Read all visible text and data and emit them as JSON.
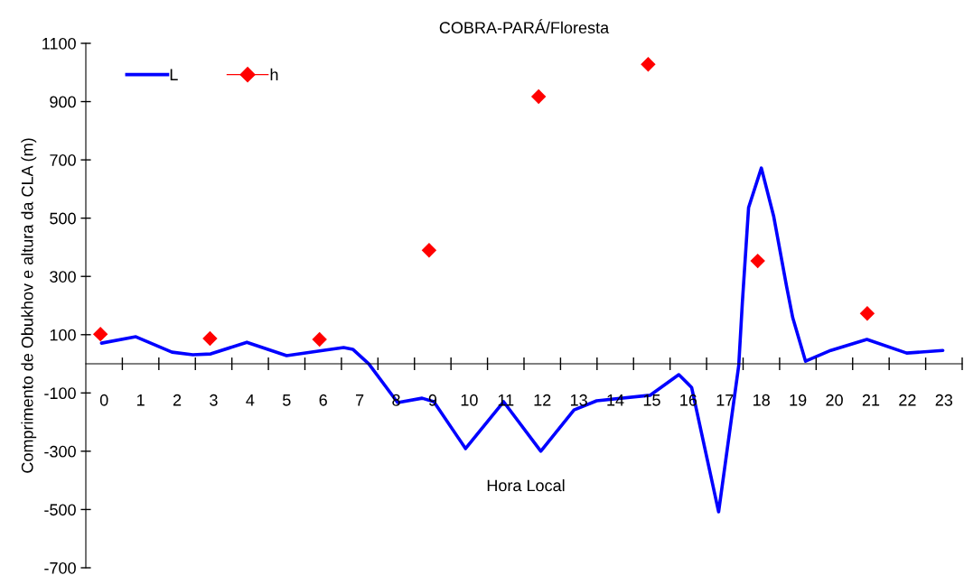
{
  "chart_data": {
    "type": "line",
    "title": "COBRA-PARÁ/Floresta",
    "xlabel": "Hora Local",
    "ylabel": "Comprimento de Obukhov e altura da CLA (m)",
    "xlim": [
      -0.5,
      23.5
    ],
    "xticks": [
      0,
      1,
      2,
      3,
      4,
      5,
      6,
      7,
      8,
      9,
      10,
      11,
      12,
      13,
      14,
      15,
      16,
      17,
      18,
      19,
      20,
      21,
      22,
      23
    ],
    "ylim": [
      -700,
      1100
    ],
    "yticks": [
      -700,
      -500,
      -300,
      -100,
      100,
      300,
      500,
      700,
      900,
      1100
    ],
    "grid": false,
    "legend": "top left",
    "series": [
      {
        "name": "L",
        "color": "#0000ff",
        "marker": "none",
        "line_style": "solid",
        "x": [
          -0.07,
          0.87,
          1.86,
          2.43,
          2.92,
          3.91,
          5.0,
          5.99,
          6.56,
          6.81,
          7.25,
          8.04,
          8.71,
          9.03,
          9.9,
          10.94,
          11.96,
          12.87,
          13.49,
          14.95,
          15.74,
          16.09,
          16.83,
          17.38,
          17.48,
          17.65,
          18.0,
          18.34,
          18.69,
          18.86,
          19.21,
          19.9,
          20.89,
          21.98,
          22.97
        ],
        "values": [
          71,
          93,
          40,
          31,
          34,
          74,
          28,
          46,
          56,
          50,
          0,
          -133,
          -118,
          -130,
          -291,
          -130,
          -300,
          -158,
          -127,
          -108,
          -37,
          -81,
          -508,
          -6,
          211,
          536,
          672,
          505,
          266,
          158,
          9,
          46,
          84,
          37,
          46
        ]
      },
      {
        "name": "h",
        "type": "scatter",
        "color": "#ff0000",
        "marker": "diamond",
        "x": [
          -0.1,
          2.9,
          5.9,
          8.9,
          11.9,
          14.9,
          17.9,
          20.9
        ],
        "values": [
          102,
          87,
          84,
          390,
          917,
          1028,
          353,
          173
        ]
      }
    ]
  }
}
